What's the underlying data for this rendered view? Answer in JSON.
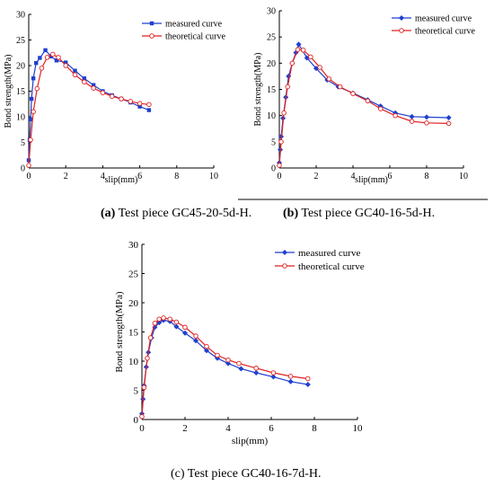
{
  "captions": [
    {
      "prefix": "(a)",
      "text": " Test piece GC45-20-5d-H."
    },
    {
      "prefix": "(b)",
      "text": " Test piece GC40-16-5d-H."
    },
    {
      "prefix": "",
      "text": "(c) Test piece GC40-16-7d-H."
    }
  ],
  "chart_data": [
    {
      "type": "line",
      "xlabel": "slip(mm)",
      "ylabel": "Bond strength(MPa)",
      "xlim": [
        0,
        10
      ],
      "ylim": [
        0,
        30
      ],
      "xticks": [
        0,
        2,
        4,
        6,
        8,
        10
      ],
      "yticks": [
        0,
        5,
        10,
        15,
        20,
        25,
        30
      ],
      "grid": false,
      "legend": "top-right",
      "series": [
        {
          "name": "measured curve",
          "color": "#1f3fd0",
          "marker": "square",
          "x": [
            0,
            0.05,
            0.1,
            0.15,
            0.25,
            0.4,
            0.6,
            0.9,
            1.2,
            1.5,
            2.0,
            2.5,
            3.0,
            3.5,
            4.0,
            4.5,
            5.0,
            5.5,
            6.0,
            6.5
          ],
          "y": [
            1.5,
            5.5,
            9.5,
            13.5,
            17.5,
            20.5,
            21.5,
            23.0,
            21.8,
            21.0,
            20.6,
            19.0,
            17.5,
            16.2,
            15.0,
            14.2,
            13.5,
            12.8,
            12.0,
            11.3
          ]
        },
        {
          "name": "theoretical curve",
          "color": "#e02020",
          "marker": "circle",
          "x": [
            0,
            0.1,
            0.25,
            0.45,
            0.7,
            1.0,
            1.3,
            1.6,
            2.0,
            2.5,
            3.0,
            3.5,
            4.0,
            4.5,
            5.0,
            5.5,
            6.0,
            6.5
          ],
          "y": [
            0.5,
            5.5,
            11.0,
            15.5,
            19.5,
            21.6,
            22.2,
            21.6,
            20.0,
            18.2,
            16.8,
            15.6,
            14.7,
            14.0,
            13.5,
            13.0,
            12.6,
            12.4
          ]
        }
      ]
    },
    {
      "type": "line",
      "xlabel": "slip(mm)",
      "ylabel": "Bond strength(MPa)",
      "xlim": [
        0,
        10
      ],
      "ylim": [
        0,
        30
      ],
      "xticks": [
        0,
        2,
        4,
        6,
        8,
        10
      ],
      "yticks": [
        0,
        5,
        10,
        15,
        20,
        25,
        30
      ],
      "grid": false,
      "legend": "top-right",
      "series": [
        {
          "name": "measured curve",
          "color": "#1f3fd0",
          "marker": "diamond",
          "x": [
            0,
            0.05,
            0.1,
            0.2,
            0.35,
            0.5,
            0.7,
            0.9,
            1.05,
            1.5,
            2.0,
            2.6,
            3.2,
            4.0,
            4.8,
            5.5,
            6.3,
            7.2,
            8.0,
            9.2
          ],
          "y": [
            1.0,
            3.5,
            6.0,
            9.5,
            13.5,
            17.5,
            20.0,
            22.0,
            23.6,
            21.0,
            19.0,
            16.8,
            15.5,
            14.3,
            13.0,
            11.8,
            10.5,
            9.8,
            9.7,
            9.6
          ]
        },
        {
          "name": "theoretical curve",
          "color": "#e02020",
          "marker": "circle",
          "x": [
            0,
            0.1,
            0.25,
            0.45,
            0.7,
            1.0,
            1.3,
            1.7,
            2.2,
            2.7,
            3.3,
            4.0,
            4.8,
            5.5,
            6.3,
            7.2,
            8.0,
            9.2
          ],
          "y": [
            0.5,
            5.0,
            10.5,
            15.5,
            20.0,
            22.6,
            22.5,
            21.2,
            19.2,
            17.0,
            15.5,
            14.2,
            12.8,
            11.3,
            10.0,
            8.9,
            8.6,
            8.5
          ]
        }
      ]
    },
    {
      "type": "line",
      "xlabel": "slip(mm)",
      "ylabel": "Bond strength(MPa)",
      "xlim": [
        0,
        10
      ],
      "ylim": [
        0,
        30
      ],
      "xticks": [
        0,
        2,
        4,
        6,
        8,
        10
      ],
      "yticks": [
        0,
        5,
        10,
        15,
        20,
        25,
        30
      ],
      "grid": false,
      "legend": "top-right",
      "series": [
        {
          "name": "measured curve",
          "color": "#1f3fd0",
          "marker": "diamond",
          "x": [
            0,
            0.05,
            0.1,
            0.2,
            0.3,
            0.45,
            0.6,
            0.8,
            1.0,
            1.3,
            1.6,
            2.0,
            2.5,
            3.0,
            3.5,
            4.0,
            4.6,
            5.3,
            6.1,
            6.9,
            7.7
          ],
          "y": [
            1.0,
            3.5,
            5.8,
            9.0,
            11.5,
            14.0,
            15.8,
            16.6,
            17.0,
            16.8,
            15.9,
            14.8,
            13.5,
            11.8,
            10.5,
            9.6,
            8.7,
            8.0,
            7.3,
            6.5,
            6.0
          ]
        },
        {
          "name": "theoretical curve",
          "color": "#e02020",
          "marker": "circle",
          "x": [
            0,
            0.1,
            0.25,
            0.4,
            0.6,
            0.8,
            1.0,
            1.3,
            1.6,
            2.0,
            2.5,
            3.0,
            3.5,
            4.0,
            4.5,
            5.3,
            6.1,
            6.9,
            7.7
          ],
          "y": [
            0.5,
            5.5,
            10.5,
            14.0,
            16.5,
            17.2,
            17.4,
            17.2,
            16.7,
            15.8,
            14.3,
            12.5,
            11.0,
            10.2,
            9.6,
            8.8,
            8.0,
            7.4,
            7.0
          ]
        }
      ]
    }
  ]
}
